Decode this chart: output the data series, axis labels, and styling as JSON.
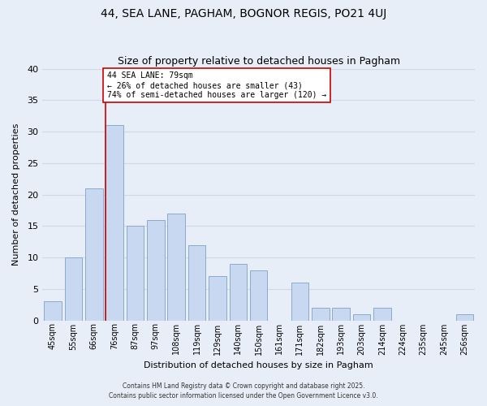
{
  "title1": "44, SEA LANE, PAGHAM, BOGNOR REGIS, PO21 4UJ",
  "title2": "Size of property relative to detached houses in Pagham",
  "xlabel": "Distribution of detached houses by size in Pagham",
  "ylabel": "Number of detached properties",
  "bar_labels": [
    "45sqm",
    "55sqm",
    "66sqm",
    "76sqm",
    "87sqm",
    "97sqm",
    "108sqm",
    "119sqm",
    "129sqm",
    "140sqm",
    "150sqm",
    "161sqm",
    "171sqm",
    "182sqm",
    "193sqm",
    "203sqm",
    "214sqm",
    "224sqm",
    "235sqm",
    "245sqm",
    "256sqm"
  ],
  "bar_values": [
    3,
    10,
    21,
    31,
    15,
    16,
    17,
    12,
    7,
    9,
    8,
    0,
    6,
    2,
    2,
    1,
    2,
    0,
    0,
    0,
    1
  ],
  "bar_color": "#c8d8f0",
  "bar_edge_color": "#8aaacc",
  "grid_color": "#d0d8e8",
  "bg_color": "#e8eef8",
  "vline_color": "#cc0000",
  "vline_x": 3.0,
  "annotation_text": "44 SEA LANE: 79sqm\n← 26% of detached houses are smaller (43)\n74% of semi-detached houses are larger (120) →",
  "annotation_box_color": "#ffffff",
  "annotation_box_edge": "#cc0000",
  "ylim": [
    0,
    40
  ],
  "yticks": [
    0,
    5,
    10,
    15,
    20,
    25,
    30,
    35,
    40
  ],
  "footer1": "Contains HM Land Registry data © Crown copyright and database right 2025.",
  "footer2": "Contains public sector information licensed under the Open Government Licence v3.0.",
  "title_fontsize": 10,
  "subtitle_fontsize": 9,
  "axis_label_fontsize": 8,
  "tick_fontsize": 7,
  "footer_fontsize": 5.5
}
